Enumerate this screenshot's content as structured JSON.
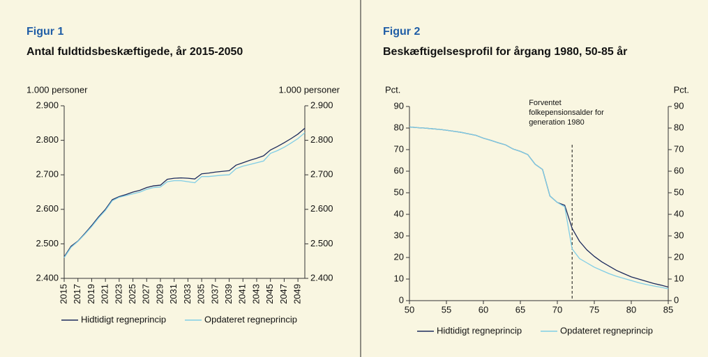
{
  "chart_data": [
    {
      "type": "line",
      "figure": "Figur 1",
      "title": "Antal fuldtidsbeskæftigede, år 2015-2050",
      "ylabel": "1.000 personer",
      "y2label": "1.000 personer",
      "x": [
        2015,
        2016,
        2017,
        2018,
        2019,
        2020,
        2021,
        2022,
        2023,
        2024,
        2025,
        2026,
        2027,
        2028,
        2029,
        2030,
        2031,
        2032,
        2033,
        2034,
        2035,
        2036,
        2037,
        2038,
        2039,
        2040,
        2041,
        2042,
        2043,
        2044,
        2045,
        2046,
        2047,
        2048,
        2049,
        2050
      ],
      "xlim": [
        2015,
        2050
      ],
      "xticks": [
        2015,
        2017,
        2019,
        2021,
        2023,
        2025,
        2027,
        2029,
        2031,
        2033,
        2035,
        2037,
        2039,
        2041,
        2043,
        2045,
        2047,
        2049
      ],
      "ylim": [
        2400,
        2900
      ],
      "yticks": [
        {
          "value": 2400,
          "label": "2.400"
        },
        {
          "value": 2500,
          "label": "2.500"
        },
        {
          "value": 2600,
          "label": "2.600"
        },
        {
          "value": 2700,
          "label": "2.700"
        },
        {
          "value": 2800,
          "label": "2.800"
        },
        {
          "value": 2900,
          "label": "2.900"
        }
      ],
      "y2lim": [
        2400,
        2900
      ],
      "y2ticks": [
        {
          "value": 2400,
          "label": "2.400"
        },
        {
          "value": 2500,
          "label": "2.500"
        },
        {
          "value": 2600,
          "label": "2.600"
        },
        {
          "value": 2700,
          "label": "2.700"
        },
        {
          "value": 2800,
          "label": "2.800"
        },
        {
          "value": 2900,
          "label": "2.900"
        }
      ],
      "series": [
        {
          "name": "Hidtidigt regneprincip",
          "color": "#1c2a5c",
          "values": [
            2462,
            2493,
            2508,
            2530,
            2553,
            2578,
            2600,
            2628,
            2637,
            2643,
            2650,
            2655,
            2663,
            2668,
            2670,
            2687,
            2690,
            2691,
            2690,
            2688,
            2703,
            2705,
            2708,
            2710,
            2712,
            2728,
            2735,
            2742,
            2748,
            2755,
            2772,
            2782,
            2793,
            2805,
            2818,
            2835
          ]
        },
        {
          "name": "Opdateret regneprincip",
          "color": "#7fcde6",
          "values": [
            2460,
            2490,
            2507,
            2528,
            2550,
            2575,
            2597,
            2625,
            2635,
            2640,
            2645,
            2650,
            2658,
            2663,
            2665,
            2680,
            2683,
            2683,
            2680,
            2677,
            2695,
            2695,
            2697,
            2699,
            2700,
            2718,
            2725,
            2730,
            2735,
            2740,
            2762,
            2770,
            2780,
            2792,
            2805,
            2822
          ]
        }
      ]
    },
    {
      "type": "line",
      "figure": "Figur 2",
      "title": "Beskæftigelsesprofil for årgang 1980, 50-85 år",
      "ylabel": "Pct.",
      "y2label": "Pct.",
      "x": [
        50,
        51,
        52,
        53,
        54,
        55,
        56,
        57,
        58,
        59,
        60,
        61,
        62,
        63,
        64,
        65,
        66,
        67,
        68,
        69,
        70,
        71,
        72,
        73,
        74,
        75,
        76,
        77,
        78,
        79,
        80,
        81,
        82,
        83,
        84,
        85
      ],
      "xlim": [
        50,
        85
      ],
      "xticks": [
        50,
        55,
        60,
        65,
        70,
        75,
        80,
        85
      ],
      "ylim": [
        0,
        90
      ],
      "yticks": [
        0,
        10,
        20,
        30,
        40,
        50,
        60,
        70,
        80,
        90
      ],
      "y2lim": [
        0,
        90
      ],
      "y2ticks": [
        0,
        10,
        20,
        30,
        40,
        50,
        60,
        70,
        80,
        90
      ],
      "annotation": {
        "x": 72,
        "lines": [
          "Forventet",
          "folkepensionsalder for",
          "generation 1980"
        ]
      },
      "series": [
        {
          "name": "Hidtidigt regneprincip",
          "color": "#1c2a5c",
          "values": [
            80.5,
            80.2,
            80,
            79.7,
            79.4,
            79,
            78.5,
            78,
            77.3,
            76.6,
            75.3,
            74.3,
            73.2,
            72.2,
            70.3,
            69.2,
            67.7,
            63.2,
            60.8,
            48.5,
            45.5,
            44.2,
            33.5,
            27.5,
            23.5,
            20.5,
            18,
            16,
            14,
            12.5,
            11,
            10,
            9,
            8,
            7.2,
            6.3
          ]
        },
        {
          "name": "Opdateret regneprincip",
          "color": "#7fcde6",
          "values": [
            80.5,
            80.2,
            80,
            79.7,
            79.4,
            79,
            78.5,
            78,
            77.3,
            76.6,
            75.3,
            74.3,
            73.2,
            72.2,
            70.3,
            69.2,
            67.7,
            63.2,
            60.8,
            48.5,
            45.5,
            43.5,
            24,
            19.5,
            17.5,
            15.5,
            14,
            12.5,
            11.3,
            10.3,
            9.3,
            8.3,
            7.5,
            6.8,
            6.2,
            5.5
          ]
        }
      ]
    }
  ]
}
